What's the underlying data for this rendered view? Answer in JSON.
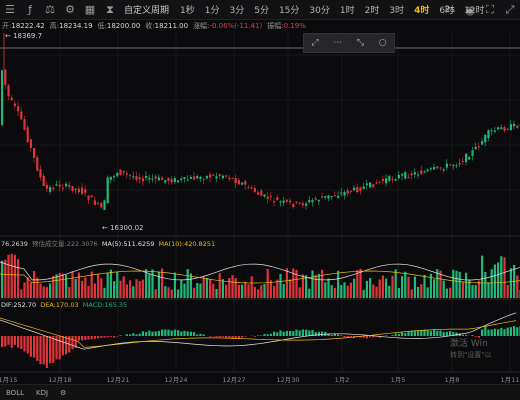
{
  "toolbar": {
    "sel": "自定义周期",
    "intervals": [
      "1秒",
      "1分",
      "3分",
      "5分",
      "15分",
      "30分",
      "1时",
      "2时",
      "3时",
      "4时",
      "6时",
      "12时"
    ],
    "active_index": 9,
    "right_label": "2s"
  },
  "ohlc": {
    "open_label": "开:",
    "open": "18222.42",
    "high_label": "高:",
    "high": "18234.19",
    "low_label": "低:",
    "low": "18200.00",
    "close_label": "收:",
    "close": "18211.00",
    "change_label": "涨幅:",
    "change": "-0.06%(-11.41)",
    "amp_label": "振幅:",
    "amp": "0.19%"
  },
  "price_high_label": "18369.7",
  "price_low_label": "16300.02",
  "volume_bar": {
    "value": "76.2639",
    "pred": "预估成交量:222.3076",
    "ma5": "MA(5):511.6259",
    "ma10": "MA(10):420.8251"
  },
  "macd_bar": {
    "dif": "DIF:252.70",
    "dea": "DEA:170.03",
    "macd": "MACD:165.35"
  },
  "xaxis": [
    "1月15",
    "12月18",
    "12月21",
    "12月24",
    "12月27",
    "12月30",
    "1月2",
    "1月5",
    "1月8",
    "1月11"
  ],
  "bottom": [
    "BOLL",
    "KDJ"
  ],
  "watermark": {
    "line1": "激活 Win",
    "line2": "转到\"设置\"以"
  },
  "colors": {
    "up": "#1eb87a",
    "down": "#e0343a",
    "accent": "#f0b90b"
  }
}
